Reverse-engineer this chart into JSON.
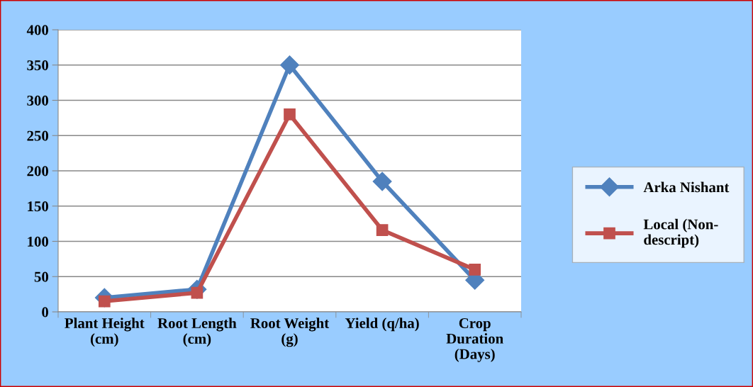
{
  "chart_data": {
    "type": "line",
    "categories": [
      "Plant Height\n(cm)",
      "Root Length\n(cm)",
      "Root Weight\n(g)",
      "Yield (q/ha)",
      "Crop\nDuration\n(Days)"
    ],
    "series": [
      {
        "name": "Arka Nishant",
        "color": "#4f81bd",
        "marker": "diamond",
        "values": [
          20,
          32,
          350,
          185,
          45
        ]
      },
      {
        "name": "Local (Non-\ndescript)",
        "color": "#c0504d",
        "marker": "square",
        "values": [
          15,
          27,
          280,
          116,
          60
        ]
      }
    ],
    "ylim": [
      0,
      400
    ],
    "yticks": [
      0,
      50,
      100,
      150,
      200,
      250,
      300,
      350,
      400
    ],
    "grid": "y",
    "legend": "right",
    "line_style": "solid"
  }
}
